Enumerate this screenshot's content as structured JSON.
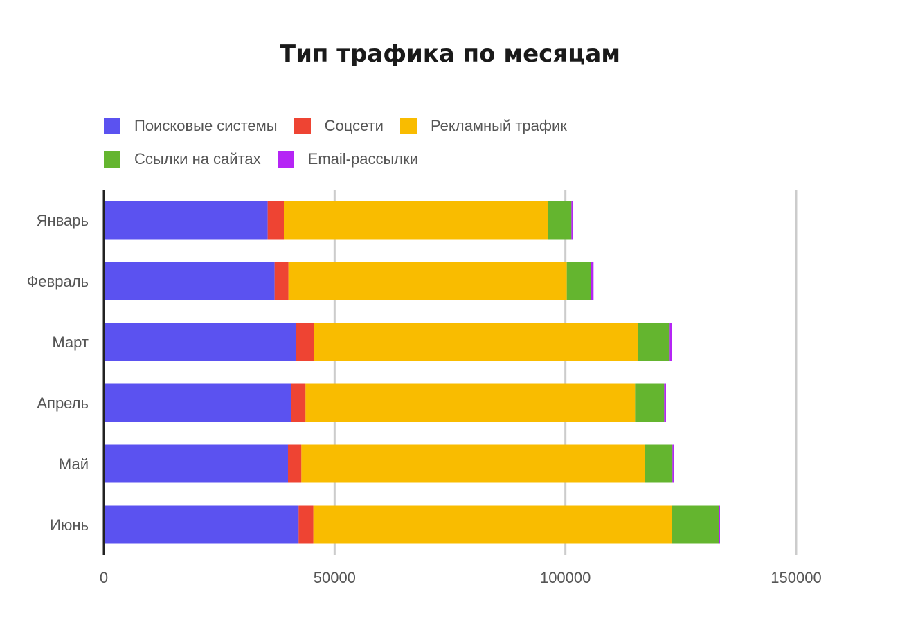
{
  "chart_data": {
    "type": "bar",
    "orientation": "horizontal",
    "stacked": true,
    "title": "Тип трафика по месяцам",
    "xlabel": "",
    "ylabel": "",
    "categories": [
      "Январь",
      "Февраль",
      "Март",
      "Апрель",
      "Май",
      "Июнь"
    ],
    "series": [
      {
        "name": "Поисковые системы",
        "color": "#5b52f0",
        "values": [
          35500,
          37000,
          41700,
          40500,
          39900,
          42200
        ]
      },
      {
        "name": "Соцсети",
        "color": "#ee4433",
        "values": [
          3500,
          3000,
          3800,
          3200,
          2900,
          3200
        ]
      },
      {
        "name": "Рекламный трафик",
        "color": "#f9bc00",
        "values": [
          57300,
          60300,
          70300,
          71400,
          74500,
          77700
        ]
      },
      {
        "name": "Ссылки на сайтах",
        "color": "#64b52f",
        "values": [
          5000,
          5300,
          6800,
          6300,
          5900,
          10100
        ]
      },
      {
        "name": "Email-рассылки",
        "color": "#b525f5",
        "values": [
          300,
          500,
          500,
          400,
          400,
          300
        ]
      }
    ],
    "xlim": [
      0,
      150000
    ],
    "xticks": [
      0,
      50000,
      100000,
      150000
    ],
    "grid": true,
    "legend_position": "top-left"
  }
}
